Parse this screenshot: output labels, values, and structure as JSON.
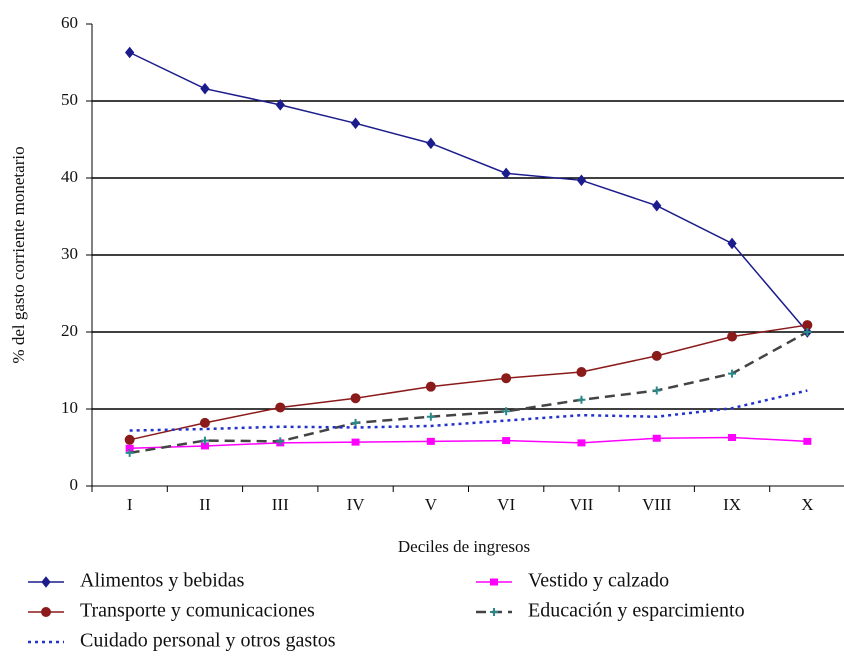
{
  "chart_data": {
    "type": "line",
    "x_label": "Deciles de ingresos",
    "y_label": "% del gasto corriente monetario",
    "categories": [
      "I",
      "II",
      "III",
      "IV",
      "V",
      "VI",
      "VII",
      "VIII",
      "IX",
      "X"
    ],
    "ylim": [
      0,
      60
    ],
    "yticks": [
      0,
      10,
      20,
      30,
      40,
      50,
      60
    ],
    "grid": true,
    "series": [
      {
        "name": "Alimentos y bebidas",
        "color": "#1c1c8c",
        "marker": "diamond",
        "dash": "solid",
        "values": [
          56.3,
          51.6,
          49.5,
          47.1,
          44.5,
          40.6,
          39.7,
          36.4,
          31.5,
          20.0
        ]
      },
      {
        "name": "Vestido y calzado",
        "color": "#ff00ff",
        "marker": "square",
        "dash": "solid",
        "values": [
          4.9,
          5.2,
          5.6,
          5.7,
          5.8,
          5.9,
          5.6,
          6.2,
          6.3,
          5.8
        ]
      },
      {
        "name": "Transporte y comunicaciones",
        "color": "#8b1a1a",
        "marker": "circle",
        "dash": "solid",
        "values": [
          6.0,
          8.2,
          10.2,
          11.4,
          12.9,
          14.0,
          14.8,
          16.9,
          19.4,
          20.9
        ]
      },
      {
        "name": "Educación y esparcimiento",
        "color": "#444444",
        "marker": "plus",
        "dash": "dashed",
        "values": [
          4.3,
          5.9,
          5.8,
          8.2,
          9.0,
          9.7,
          11.2,
          12.4,
          14.6,
          20.0
        ]
      },
      {
        "name": "Cuidado personal y otros gastos",
        "color": "#2233cc",
        "marker": "none",
        "dash": "dotted",
        "values": [
          7.2,
          7.4,
          7.7,
          7.6,
          7.8,
          8.5,
          9.2,
          9.0,
          10.1,
          12.4
        ]
      }
    ]
  }
}
